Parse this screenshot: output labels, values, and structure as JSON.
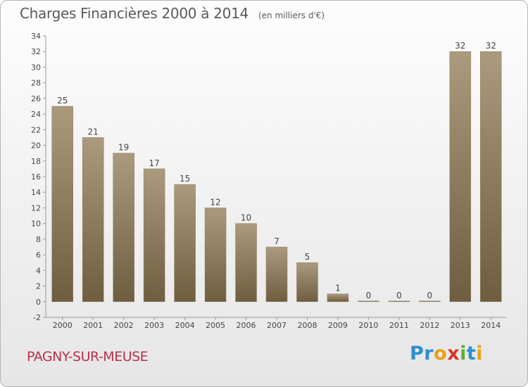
{
  "header": {
    "title": "Charges Financières 2000 à 2014",
    "subtitle": "(en milliers d'€)"
  },
  "footer": {
    "place": "PAGNY-SUR-MEUSE",
    "logo": "Proxiti"
  },
  "colors": {
    "bar_light": "#ab9a7d",
    "bar_dark": "#6f5d40",
    "axis": "#999999",
    "text": "#444444"
  },
  "chart_data": {
    "type": "bar",
    "title": "Charges Financières 2000 à 2014",
    "subtitle": "(en milliers d'€)",
    "categories": [
      "2000",
      "2001",
      "2002",
      "2003",
      "2004",
      "2005",
      "2006",
      "2007",
      "2008",
      "2009",
      "2010",
      "2011",
      "2012",
      "2013",
      "2014"
    ],
    "values": [
      25,
      21,
      19,
      17,
      15,
      12,
      10,
      7,
      5,
      1,
      0,
      0,
      0,
      32,
      32
    ],
    "ylim": [
      -2,
      34
    ],
    "yticks": [
      -2,
      0,
      2,
      4,
      6,
      8,
      10,
      12,
      14,
      16,
      18,
      20,
      22,
      24,
      26,
      28,
      30,
      32,
      34
    ],
    "grid": false,
    "legend": "none"
  }
}
